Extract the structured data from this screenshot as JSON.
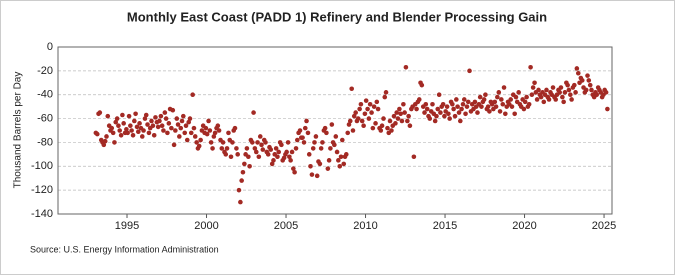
{
  "chart_data": {
    "type": "scatter",
    "title": "Monthly East Coast (PADD 1) Refinery and Blender Processing Gain",
    "y_label": "Thousand Barrels per Day",
    "source": "Source: U.S. Energy Information Administration",
    "xlim": [
      1990.66,
      2025.5
    ],
    "xticks": [
      1995,
      2000,
      2005,
      2010,
      2015,
      2020,
      2025
    ],
    "ylim": [
      -140,
      0
    ],
    "yticks": [
      0,
      -20,
      -40,
      -60,
      -80,
      -100,
      -120,
      -140
    ],
    "grid": true,
    "series": [
      {
        "name": "East Coast (PADD 1) Refinery and Blender Processing Gain",
        "color": "#a32a24",
        "x": [
          1993.04,
          1993.13,
          1993.21,
          1993.29,
          1993.38,
          1993.46,
          1993.54,
          1993.63,
          1993.71,
          1993.79,
          1993.88,
          1993.96,
          1994.04,
          1994.13,
          1994.21,
          1994.29,
          1994.38,
          1994.46,
          1994.54,
          1994.63,
          1994.71,
          1994.79,
          1994.88,
          1994.96,
          1995.04,
          1995.13,
          1995.21,
          1995.29,
          1995.38,
          1995.46,
          1995.54,
          1995.63,
          1995.71,
          1995.79,
          1995.88,
          1995.96,
          1996.04,
          1996.13,
          1996.21,
          1996.29,
          1996.38,
          1996.46,
          1996.54,
          1996.63,
          1996.71,
          1996.79,
          1996.88,
          1996.96,
          1997.04,
          1997.13,
          1997.21,
          1997.29,
          1997.38,
          1997.46,
          1997.54,
          1997.63,
          1997.71,
          1997.79,
          1997.88,
          1997.96,
          1998.04,
          1998.13,
          1998.21,
          1998.29,
          1998.38,
          1998.46,
          1998.54,
          1998.63,
          1998.71,
          1998.79,
          1998.88,
          1998.96,
          1999.04,
          1999.13,
          1999.21,
          1999.29,
          1999.38,
          1999.46,
          1999.54,
          1999.63,
          1999.71,
          1999.79,
          1999.88,
          1999.96,
          2000.04,
          2000.13,
          2000.21,
          2000.29,
          2000.38,
          2000.46,
          2000.54,
          2000.63,
          2000.71,
          2000.79,
          2000.88,
          2000.96,
          2001.04,
          2001.13,
          2001.21,
          2001.29,
          2001.38,
          2001.46,
          2001.54,
          2001.63,
          2001.71,
          2001.79,
          2001.88,
          2001.96,
          2002.04,
          2002.13,
          2002.21,
          2002.29,
          2002.38,
          2002.46,
          2002.54,
          2002.63,
          2002.71,
          2002.79,
          2002.88,
          2002.96,
          2003.04,
          2003.13,
          2003.21,
          2003.29,
          2003.38,
          2003.46,
          2003.54,
          2003.63,
          2003.71,
          2003.79,
          2003.88,
          2003.96,
          2004.04,
          2004.13,
          2004.21,
          2004.29,
          2004.38,
          2004.46,
          2004.54,
          2004.63,
          2004.71,
          2004.79,
          2004.88,
          2004.96,
          2005.04,
          2005.13,
          2005.21,
          2005.29,
          2005.38,
          2005.46,
          2005.54,
          2005.63,
          2005.71,
          2005.79,
          2005.88,
          2005.96,
          2006.04,
          2006.13,
          2006.21,
          2006.29,
          2006.38,
          2006.46,
          2006.54,
          2006.63,
          2006.71,
          2006.79,
          2006.88,
          2006.96,
          2007.04,
          2007.13,
          2007.21,
          2007.29,
          2007.38,
          2007.46,
          2007.54,
          2007.63,
          2007.71,
          2007.79,
          2007.88,
          2007.96,
          2008.04,
          2008.13,
          2008.21,
          2008.29,
          2008.38,
          2008.46,
          2008.54,
          2008.63,
          2008.71,
          2008.79,
          2008.88,
          2008.96,
          2009.04,
          2009.13,
          2009.21,
          2009.29,
          2009.38,
          2009.46,
          2009.54,
          2009.63,
          2009.71,
          2009.79,
          2009.88,
          2009.96,
          2010.04,
          2010.13,
          2010.21,
          2010.29,
          2010.38,
          2010.46,
          2010.54,
          2010.63,
          2010.71,
          2010.79,
          2010.88,
          2010.96,
          2011.04,
          2011.13,
          2011.21,
          2011.29,
          2011.38,
          2011.46,
          2011.54,
          2011.63,
          2011.71,
          2011.79,
          2011.88,
          2011.96,
          2012.04,
          2012.13,
          2012.21,
          2012.29,
          2012.38,
          2012.46,
          2012.54,
          2012.63,
          2012.71,
          2012.79,
          2012.88,
          2012.96,
          2013.04,
          2013.13,
          2013.21,
          2013.29,
          2013.38,
          2013.46,
          2013.54,
          2013.63,
          2013.71,
          2013.79,
          2013.88,
          2013.96,
          2014.04,
          2014.13,
          2014.21,
          2014.29,
          2014.38,
          2014.46,
          2014.54,
          2014.63,
          2014.71,
          2014.79,
          2014.88,
          2014.96,
          2015.04,
          2015.13,
          2015.21,
          2015.29,
          2015.38,
          2015.46,
          2015.54,
          2015.63,
          2015.71,
          2015.79,
          2015.88,
          2015.96,
          2016.04,
          2016.13,
          2016.21,
          2016.29,
          2016.38,
          2016.46,
          2016.54,
          2016.63,
          2016.71,
          2016.79,
          2016.88,
          2016.96,
          2017.04,
          2017.13,
          2017.21,
          2017.29,
          2017.38,
          2017.46,
          2017.54,
          2017.63,
          2017.71,
          2017.79,
          2017.88,
          2017.96,
          2018.04,
          2018.13,
          2018.21,
          2018.29,
          2018.38,
          2018.46,
          2018.54,
          2018.63,
          2018.71,
          2018.79,
          2018.88,
          2018.96,
          2019.04,
          2019.13,
          2019.21,
          2019.29,
          2019.38,
          2019.46,
          2019.54,
          2019.63,
          2019.71,
          2019.79,
          2019.88,
          2019.96,
          2020.04,
          2020.13,
          2020.21,
          2020.29,
          2020.38,
          2020.46,
          2020.54,
          2020.63,
          2020.71,
          2020.79,
          2020.88,
          2020.96,
          2021.04,
          2021.13,
          2021.21,
          2021.29,
          2021.38,
          2021.46,
          2021.54,
          2021.63,
          2021.71,
          2021.79,
          2021.88,
          2021.96,
          2022.04,
          2022.13,
          2022.21,
          2022.29,
          2022.38,
          2022.46,
          2022.54,
          2022.63,
          2022.71,
          2022.79,
          2022.88,
          2022.96,
          2023.04,
          2023.13,
          2023.21,
          2023.29,
          2023.38,
          2023.46,
          2023.54,
          2023.63,
          2023.71,
          2023.79,
          2023.88,
          2023.96,
          2024.04,
          2024.13,
          2024.21,
          2024.29,
          2024.38,
          2024.46,
          2024.54,
          2024.63,
          2024.71,
          2024.79,
          2024.88,
          2024.96,
          2025.04,
          2025.13,
          2025.21
        ],
        "values": [
          -72,
          -73,
          -56,
          -55,
          -78,
          -80,
          -82,
          -79,
          -75,
          -58,
          -66,
          -70,
          -68,
          -72,
          -80,
          -63,
          -60,
          -66,
          -70,
          -74,
          -57,
          -64,
          -72,
          -69,
          -72,
          -58,
          -66,
          -70,
          -74,
          -62,
          -56,
          -67,
          -71,
          -64,
          -68,
          -75,
          -70,
          -60,
          -57,
          -65,
          -72,
          -68,
          -62,
          -66,
          -74,
          -59,
          -63,
          -67,
          -62,
          -58,
          -66,
          -70,
          -55,
          -60,
          -72,
          -64,
          -52,
          -68,
          -53,
          -82,
          -70,
          -60,
          -65,
          -75,
          -68,
          -62,
          -58,
          -72,
          -66,
          -78,
          -63,
          -60,
          -72,
          -40,
          -68,
          -75,
          -80,
          -85,
          -83,
          -78,
          -70,
          -66,
          -72,
          -68,
          -73,
          -62,
          -70,
          -80,
          -85,
          -75,
          -72,
          -68,
          -66,
          -70,
          -78,
          -85,
          -80,
          -88,
          -90,
          -85,
          -72,
          -78,
          -92,
          -80,
          -70,
          -68,
          -85,
          -90,
          -120,
          -130,
          -112,
          -105,
          -98,
          -90,
          -85,
          -92,
          -100,
          -78,
          -80,
          -55,
          -85,
          -88,
          -80,
          -92,
          -75,
          -82,
          -86,
          -78,
          -80,
          -88,
          -90,
          -84,
          -86,
          -98,
          -95,
          -90,
          -85,
          -92,
          -88,
          -80,
          -82,
          -95,
          -93,
          -90,
          -88,
          -80,
          -92,
          -95,
          -88,
          -102,
          -105,
          -85,
          -78,
          -72,
          -70,
          -76,
          -76,
          -80,
          -68,
          -62,
          -72,
          -90,
          -100,
          -107,
          -85,
          -80,
          -75,
          -108,
          -96,
          -98,
          -85,
          -80,
          -70,
          -68,
          -72,
          -102,
          -95,
          -85,
          -65,
          -80,
          -82,
          -75,
          -88,
          -95,
          -100,
          -92,
          -78,
          -98,
          -92,
          -90,
          -72,
          -65,
          -62,
          -35,
          -70,
          -58,
          -55,
          -62,
          -60,
          -52,
          -48,
          -62,
          -66,
          -56,
          -45,
          -52,
          -60,
          -48,
          -55,
          -68,
          -50,
          -64,
          -46,
          -52,
          -68,
          -70,
          -66,
          -60,
          -42,
          -38,
          -68,
          -72,
          -62,
          -70,
          -66,
          -58,
          -64,
          -55,
          -60,
          -52,
          -56,
          -62,
          -48,
          -55,
          -17,
          -62,
          -58,
          -66,
          -52,
          -50,
          -92,
          -48,
          -52,
          -46,
          -44,
          -30,
          -32,
          -50,
          -55,
          -48,
          -52,
          -58,
          -60,
          -54,
          -48,
          -56,
          -62,
          -58,
          -52,
          -40,
          -55,
          -50,
          -48,
          -58,
          -54,
          -50,
          -56,
          -60,
          -46,
          -48,
          -52,
          -58,
          -44,
          -50,
          -55,
          -62,
          -52,
          -48,
          -44,
          -56,
          -50,
          -46,
          -20,
          -54,
          -48,
          -52,
          -46,
          -50,
          -55,
          -48,
          -42,
          -50,
          -46,
          -44,
          -40,
          -52,
          -50,
          -54,
          -46,
          -48,
          -52,
          -46,
          -50,
          -42,
          -38,
          -54,
          -44,
          -48,
          -34,
          -56,
          -50,
          -46,
          -48,
          -44,
          -50,
          -40,
          -56,
          -42,
          -46,
          -38,
          -48,
          -50,
          -44,
          -52,
          -46,
          -42,
          -50,
          -48,
          -17,
          -40,
          -34,
          -30,
          -38,
          -44,
          -36,
          -40,
          -42,
          -38,
          -46,
          -40,
          -36,
          -42,
          -44,
          -38,
          -40,
          -34,
          -42,
          -44,
          -40,
          -36,
          -38,
          -34,
          -42,
          -46,
          -38,
          -30,
          -32,
          -36,
          -40,
          -44,
          -34,
          -32,
          -38,
          -18,
          -22,
          -30,
          -26,
          -28,
          -34,
          -38,
          -36,
          -24,
          -28,
          -32,
          -36,
          -40,
          -42,
          -38,
          -40,
          -34,
          -36,
          -38,
          -42,
          -40,
          -36,
          -38,
          -52
        ]
      }
    ]
  }
}
